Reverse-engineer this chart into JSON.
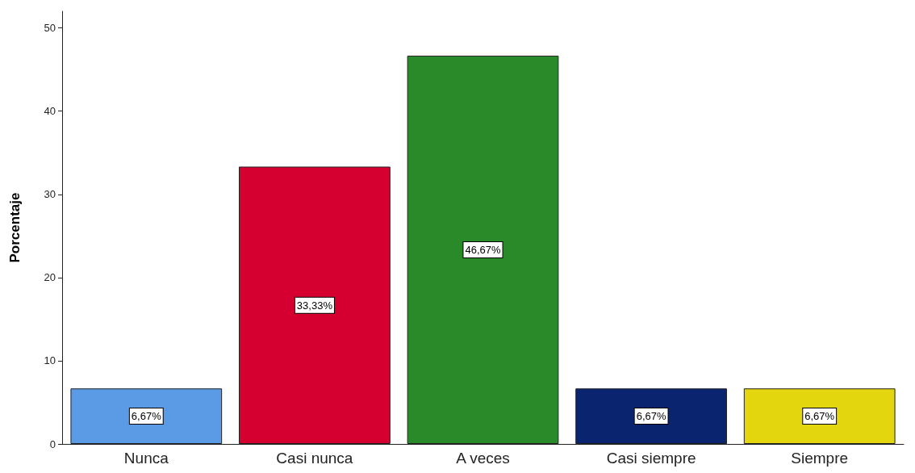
{
  "chart_data": {
    "type": "bar",
    "ylabel": "Porcentaje",
    "categories": [
      "Nunca",
      "Casi nunca",
      "A veces",
      "Casi siempre",
      "Siempre"
    ],
    "values": [
      6.67,
      33.33,
      46.67,
      6.67,
      6.67
    ],
    "colors": [
      "#5b9be6",
      "#d5002f",
      "#2a8a2a",
      "#0b2470",
      "#e3d60f"
    ],
    "value_labels": [
      "6,67%",
      "33,33%",
      "46,67%",
      "6,67%",
      "6,67%"
    ],
    "ylim": [
      0,
      52
    ],
    "yticks": [
      0,
      10,
      20,
      30,
      40,
      50
    ],
    "grid": false
  }
}
